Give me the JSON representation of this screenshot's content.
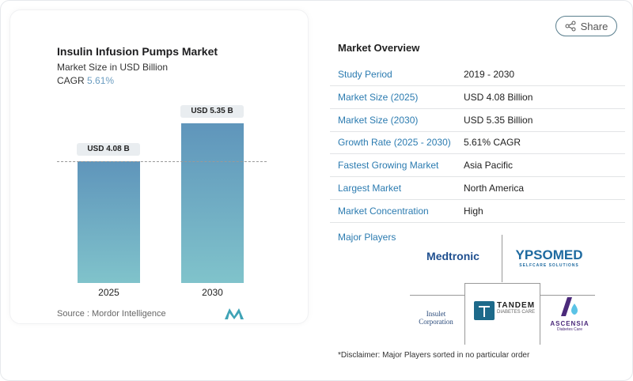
{
  "share_label": "Share",
  "chart_card": {
    "title": "Insulin Infusion Pumps Market",
    "subtitle": "Market Size in USD Billion",
    "cagr_label": "CAGR",
    "cagr_value": "5.61%",
    "source": "Source :  Mordor Intelligence"
  },
  "chart_data": {
    "type": "bar",
    "categories": [
      "2025",
      "2030"
    ],
    "values": [
      4.08,
      5.35
    ],
    "data_labels": [
      "USD 4.08 B",
      "USD 5.35 B"
    ],
    "ylim": [
      0,
      5.35
    ],
    "grid": false,
    "bar_color_top": "#5f95bb",
    "bar_color_bottom": "#80c3cb"
  },
  "overview": {
    "title": "Market Overview",
    "rows": [
      {
        "key": "Study Period",
        "value": "2019 - 2030"
      },
      {
        "key": "Market Size (2025)",
        "value": "USD 4.08 Billion"
      },
      {
        "key": "Market Size (2030)",
        "value": "USD 5.35 Billion"
      },
      {
        "key": "Growth Rate (2025 - 2030)",
        "value": "5.61% CAGR"
      },
      {
        "key": "Fastest Growing Market",
        "value": "Asia Pacific"
      },
      {
        "key": "Largest Market",
        "value": "North America"
      },
      {
        "key": "Market Concentration",
        "value": "High"
      }
    ]
  },
  "major_players": {
    "label": "Major Players",
    "players": [
      "Medtronic",
      "YPSOMED",
      "Insulet Corporation",
      "TANDEM",
      "ASCENSIA"
    ],
    "ypsomed_tag": "SELFCARE SOLUTIONS",
    "tandem_tag": "DIABETES CARE",
    "ascensia_tag": "Diabetes Care"
  },
  "disclaimer": "*Disclaimer: Major Players sorted in no particular order"
}
